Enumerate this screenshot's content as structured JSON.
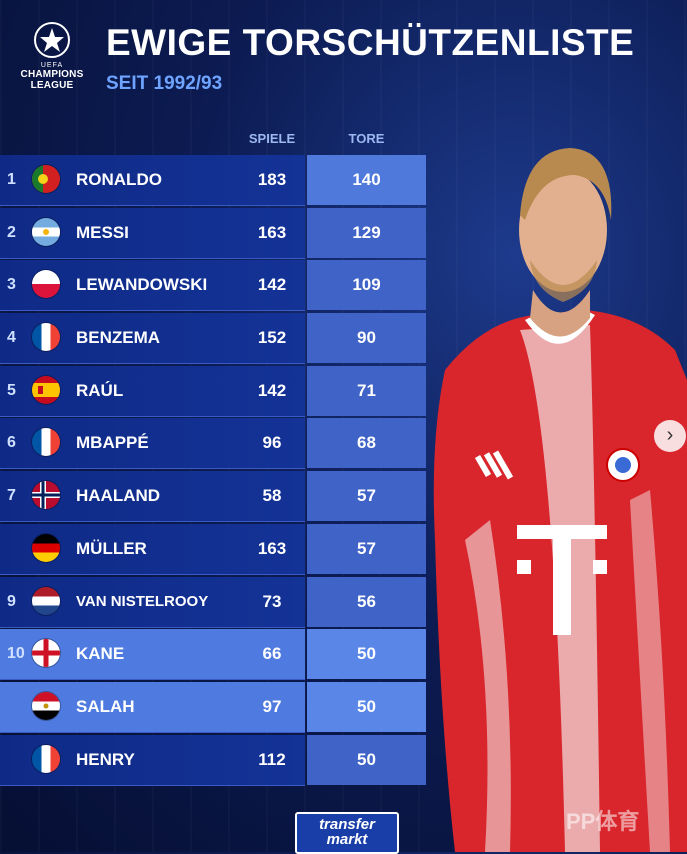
{
  "logo": {
    "line1": "UEFA",
    "line2": "CHAMPIONS",
    "line3": "LEAGUE"
  },
  "title": "EWIGE TORSCHÜTZENLISTE",
  "subtitle": "SEIT 1992/93",
  "columns": {
    "games": "SPIELE",
    "goals": "TORE"
  },
  "rows": [
    {
      "rank": "1",
      "name": "RONALDO",
      "games": "183",
      "goals": "140",
      "flag": "portugal"
    },
    {
      "rank": "2",
      "name": "MESSI",
      "games": "163",
      "goals": "129",
      "flag": "argentina"
    },
    {
      "rank": "3",
      "name": "LEWANDOWSKI",
      "games": "142",
      "goals": "109",
      "flag": "poland"
    },
    {
      "rank": "4",
      "name": "BENZEMA",
      "games": "152",
      "goals": "90",
      "flag": "france"
    },
    {
      "rank": "5",
      "name": "RAÚL",
      "games": "142",
      "goals": "71",
      "flag": "spain"
    },
    {
      "rank": "6",
      "name": "MBAPPÉ",
      "games": "96",
      "goals": "68",
      "flag": "france"
    },
    {
      "rank": "7",
      "name": "HAALAND",
      "games": "58",
      "goals": "57",
      "flag": "norway"
    },
    {
      "rank": "",
      "name": "MÜLLER",
      "games": "163",
      "goals": "57",
      "flag": "germany"
    },
    {
      "rank": "9",
      "name": "VAN NISTELROOY",
      "games": "73",
      "goals": "56",
      "flag": "netherlands"
    },
    {
      "rank": "10",
      "name": "KANE",
      "games": "66",
      "goals": "50",
      "flag": "england"
    },
    {
      "rank": "",
      "name": "SALAH",
      "games": "97",
      "goals": "50",
      "flag": "egypt"
    },
    {
      "rank": "",
      "name": "HENRY",
      "games": "112",
      "goals": "50",
      "flag": "france"
    }
  ],
  "brand": {
    "line1": "transfer",
    "line2": "markt"
  },
  "watermark": "PP体育",
  "next_button": "›",
  "colors": {
    "row": "#0f2a86",
    "tore_column": "#3f63c6",
    "highlight": "#4f7be0",
    "subtitle": "#6ea3ff"
  }
}
